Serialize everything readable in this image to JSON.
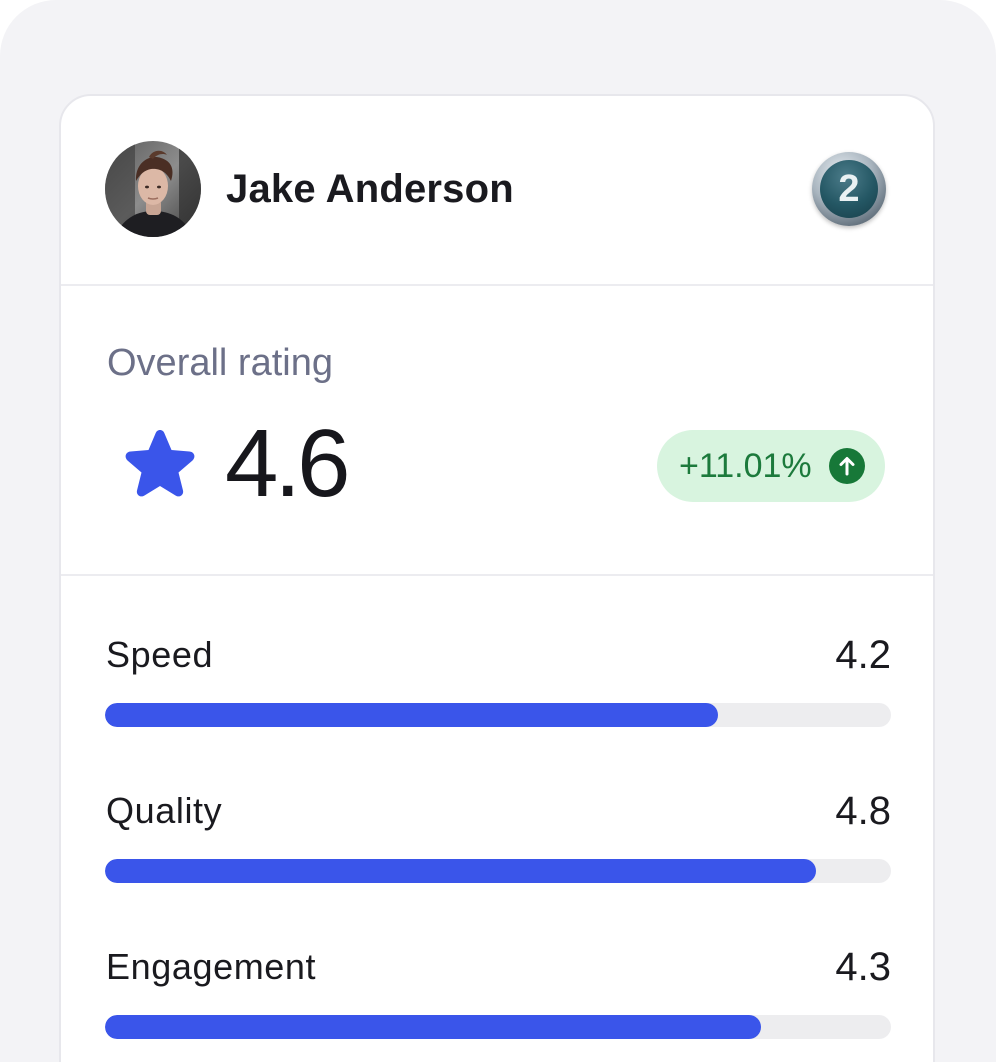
{
  "user": {
    "name": "Jake Anderson",
    "rank": "2"
  },
  "overall": {
    "label": "Overall rating",
    "value": "4.6",
    "change": "+11.01%",
    "change_direction": "up"
  },
  "metrics": [
    {
      "label": "Speed",
      "value": "4.2",
      "progress_percent": 78
    },
    {
      "label": "Quality",
      "value": "4.8",
      "progress_percent": 90.5
    },
    {
      "label": "Engagement",
      "value": "4.3",
      "progress_percent": 83.5
    }
  ],
  "colors": {
    "accent": "#3a55ea",
    "positive_bg": "#d8f4df",
    "positive_text": "#1c7a3c",
    "track": "#ededef"
  },
  "icons": {
    "rating": "star-icon",
    "trend": "arrow-up-icon",
    "rank": "rank-medal-icon"
  }
}
